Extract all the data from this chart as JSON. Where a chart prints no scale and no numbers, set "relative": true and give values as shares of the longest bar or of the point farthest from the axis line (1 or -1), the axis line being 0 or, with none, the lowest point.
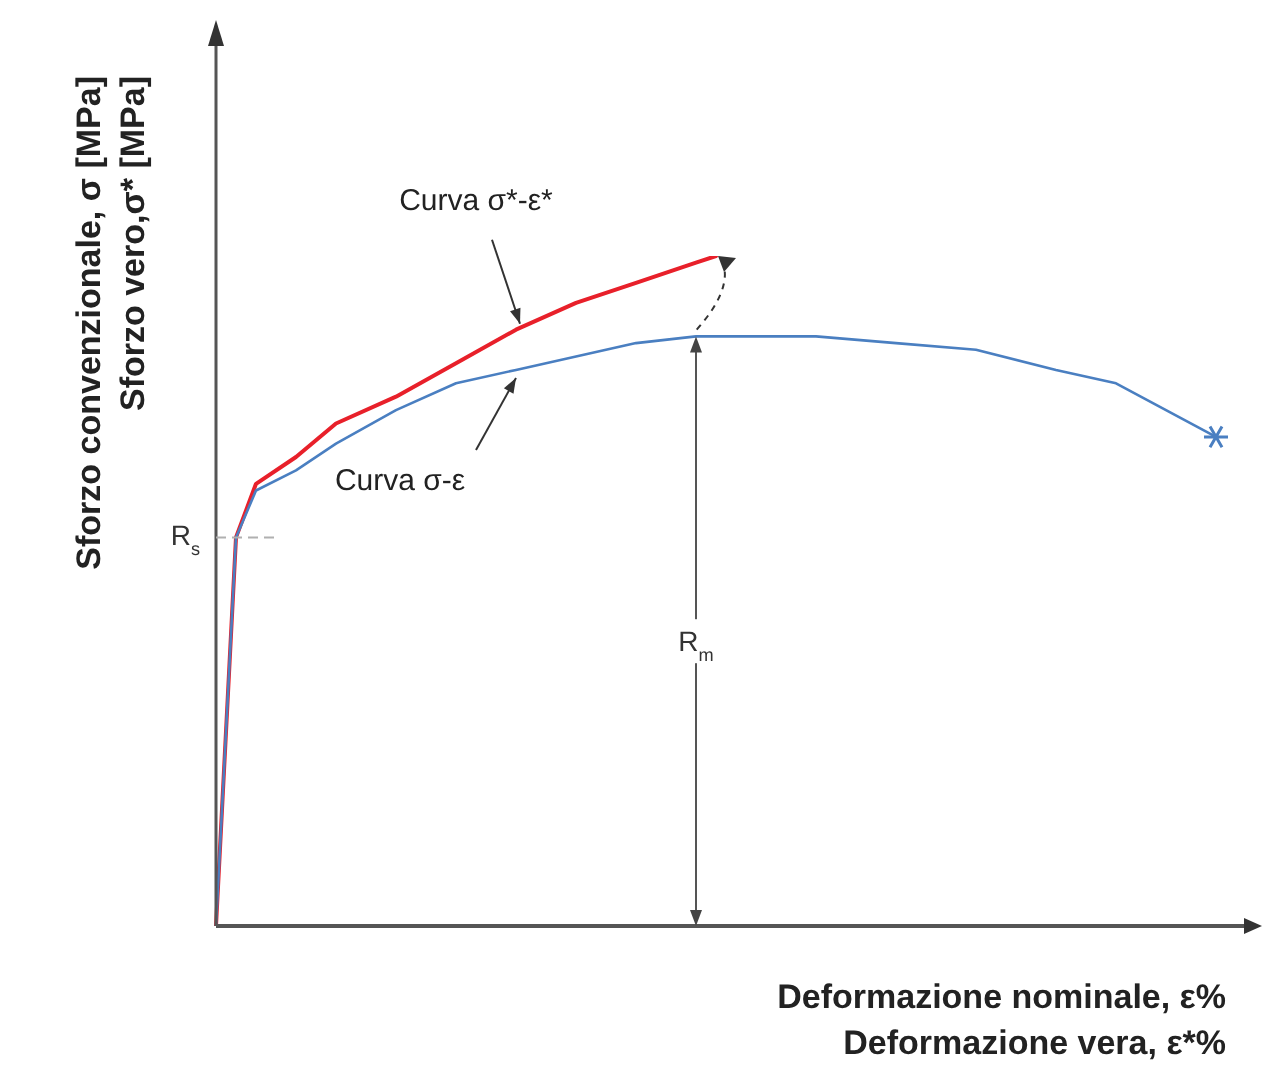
{
  "chart_data": {
    "type": "line",
    "relative": true,
    "xlabel": "Deformazione nominale, ε%\nDeformazione vera, ε*%",
    "ylabel": "Sforzo convenzionale, σ [MPa]\nSforzo vero,σ* [MPa]",
    "categories": [
      null,
      null,
      null,
      null,
      null,
      null,
      null,
      null,
      null,
      null,
      null,
      null,
      null,
      null,
      null,
      null,
      null,
      null,
      null,
      null,
      null,
      null,
      null,
      null,
      null,
      null,
      null,
      null,
      null,
      null,
      null,
      null,
      null,
      null,
      null,
      null,
      null,
      null,
      null,
      null,
      null,
      null,
      null,
      null,
      null,
      null,
      null,
      null,
      null,
      null,
      null,
      null,
      null
    ],
    "series": [
      {
        "name": "Curva σ-ε",
        "color": "#4a7fc1",
        "values": [
          0,
          0.58,
          0.65,
          null,
          0.68,
          null,
          0.72,
          null,
          null,
          0.77,
          null,
          null,
          0.81,
          null,
          null,
          0.83,
          null,
          null,
          0.85,
          null,
          null,
          0.87,
          null,
          null,
          0.88,
          null,
          null,
          0.88,
          null,
          null,
          0.88,
          null,
          null,
          null,
          0.87,
          null,
          null,
          null,
          0.86,
          null,
          null,
          null,
          0.83,
          null,
          null,
          0.81,
          null,
          null,
          null,
          null,
          0.73,
          null,
          null
        ]
      },
      {
        "name": "Curva σ*-ε*",
        "color": "#e8202a",
        "values": [
          0,
          0.58,
          0.66,
          null,
          0.7,
          null,
          0.75,
          null,
          null,
          0.79,
          null,
          null,
          0.84,
          null,
          null,
          0.89,
          null,
          null,
          0.93,
          null,
          null,
          0.96,
          null,
          null,
          0.99,
          1,
          null,
          null,
          null,
          null,
          null,
          null,
          null,
          null,
          null,
          null,
          null,
          null,
          null,
          null,
          null,
          null,
          null,
          null,
          null,
          null,
          null,
          null,
          null,
          null,
          null,
          null,
          null
        ]
      }
    ],
    "ref_lines": [
      {
        "axis": "y",
        "value": 0.58,
        "label": "R$_{s}$",
        "line_style": "dashed",
        "color": "#b0b0b0"
      }
    ],
    "annotations": [
      "R$_{m}$"
    ]
  }
}
